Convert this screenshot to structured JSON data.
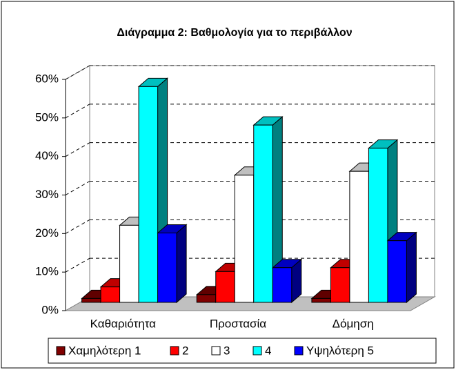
{
  "chart_data": {
    "type": "bar3d",
    "title": "Διάγραμμα 2: Βαθμολογία για το περιβάλλον",
    "categories": [
      "Καθαριότητα",
      "Προστασία",
      "Δόμηση"
    ],
    "series": [
      {
        "name": "Χαμηλότερη 1",
        "color": "#800000",
        "values": [
          1,
          2,
          1
        ]
      },
      {
        "name": "2",
        "color": "#ff0000",
        "values": [
          4,
          8,
          9
        ]
      },
      {
        "name": "3",
        "color": "#ffffff",
        "values": [
          20,
          33,
          34
        ]
      },
      {
        "name": "4",
        "color": "#00ffff",
        "values": [
          56,
          46,
          40
        ]
      },
      {
        "name": "Υψηλότερη 5",
        "color": "#0000ff",
        "values": [
          18,
          9,
          16
        ]
      }
    ],
    "ylim": [
      0,
      60
    ],
    "yticks": [
      {
        "value": 0,
        "label": "0%"
      },
      {
        "value": 10,
        "label": "10%"
      },
      {
        "value": 20,
        "label": "20%"
      },
      {
        "value": 30,
        "label": "30%"
      },
      {
        "value": 40,
        "label": "40%"
      },
      {
        "value": 50,
        "label": "50%"
      },
      {
        "value": 60,
        "label": "60%"
      }
    ],
    "grid": true,
    "legend": "bottom"
  }
}
